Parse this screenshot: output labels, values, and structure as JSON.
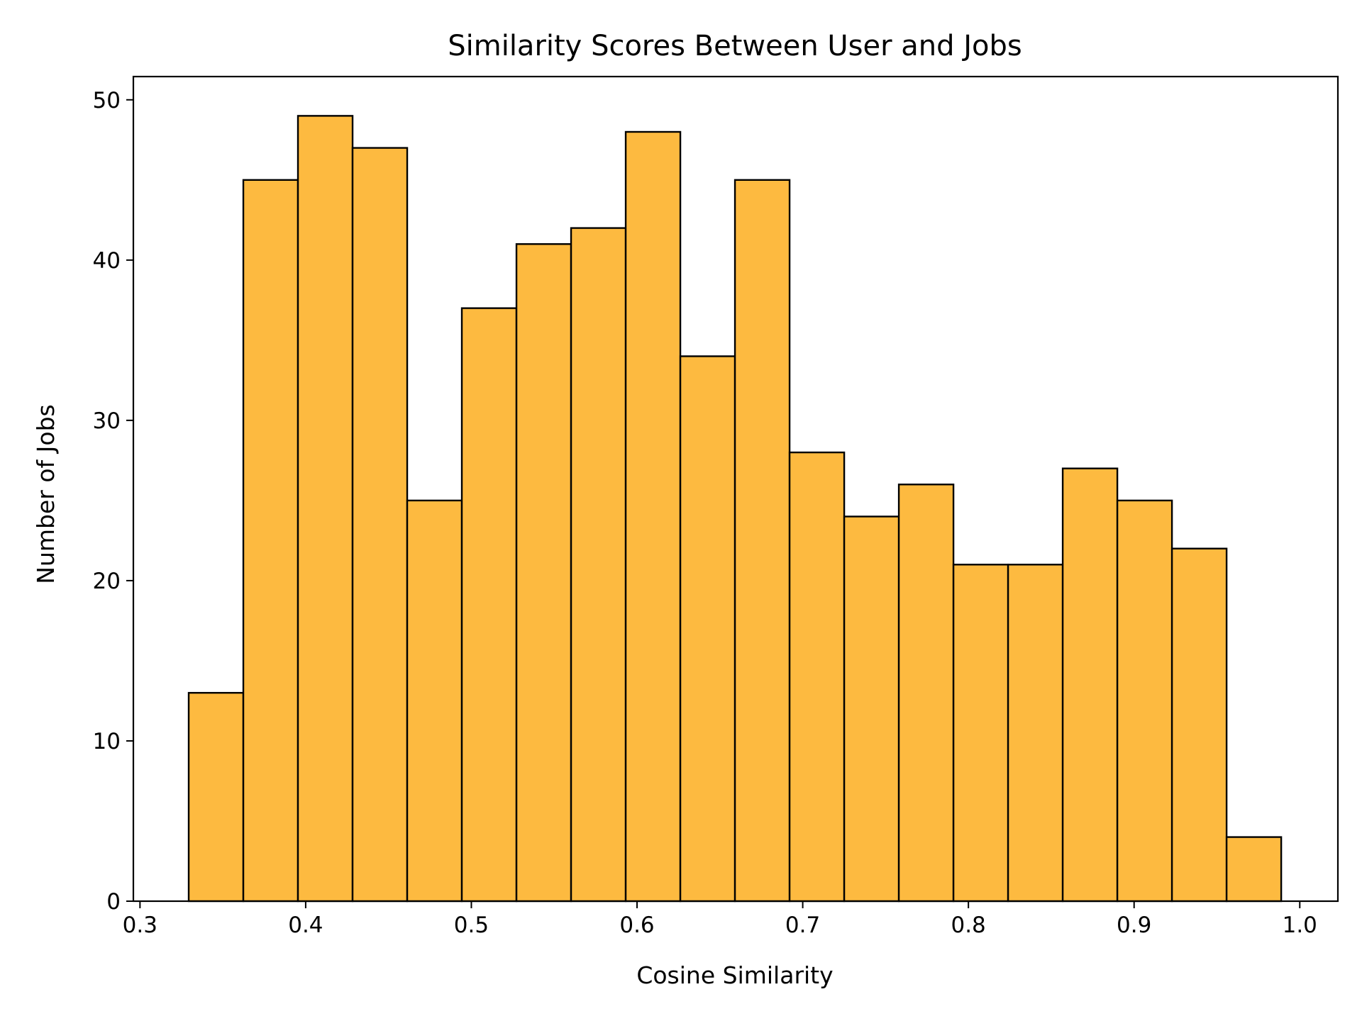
{
  "chart_data": {
    "type": "bar",
    "title": "Similarity Scores Between User and Jobs",
    "xlabel": "Cosine Similarity",
    "ylabel": "Number of Jobs",
    "xlim": [
      0.296,
      1.023
    ],
    "ylim": [
      0,
      51.45
    ],
    "xticks": [
      0.3,
      0.4,
      0.5,
      0.6,
      0.7,
      0.8,
      0.9,
      1.0
    ],
    "xtick_labels": [
      "0.3",
      "0.4",
      "0.5",
      "0.6",
      "0.7",
      "0.8",
      "0.9",
      "1.0"
    ],
    "yticks": [
      0,
      10,
      20,
      30,
      40,
      50
    ],
    "ytick_labels": [
      "0",
      "10",
      "20",
      "30",
      "40",
      "50"
    ],
    "bins": {
      "start": 0.3294,
      "width": 0.03297,
      "counts": [
        13,
        45,
        49,
        47,
        25,
        37,
        41,
        42,
        48,
        34,
        45,
        28,
        24,
        26,
        21,
        21,
        27,
        25,
        22,
        4
      ]
    },
    "grid": false,
    "legend": "none",
    "colors": {
      "bar_fill": "#FDBA40",
      "bar_edge": "#000000",
      "axes": "#000000"
    }
  }
}
